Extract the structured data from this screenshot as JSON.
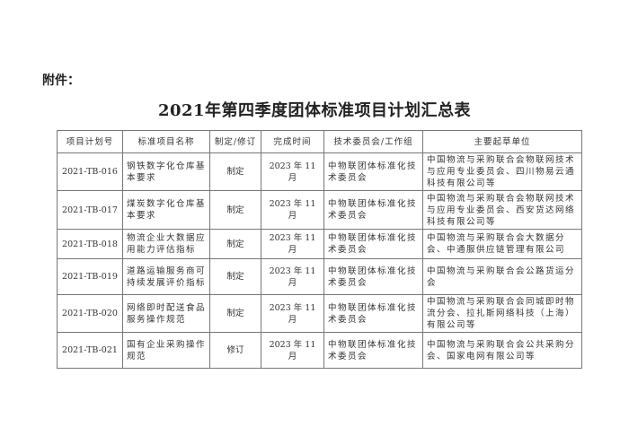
{
  "attachment_label": "附件：",
  "title": "2021年第四季度团体标准项目计划汇总表",
  "table": {
    "headers": [
      "项目计划号",
      "标准项目名称",
      "制定/修订",
      "完成时间",
      "技术委员会/工作组",
      "主要起草单位"
    ],
    "rows": [
      [
        "2021-TB-016",
        "钢铁数字化仓库基本要求",
        "制定",
        "2023 年 11 月",
        "中物联团体标准化技术委员会",
        "中国物流与采购联合会物联网技术与应用专业委员会、四川物易云通科技有限公司等"
      ],
      [
        "2021-TB-017",
        "煤炭数字化仓库基本要求",
        "制定",
        "2023 年 11 月",
        "中物联团体标准化技术委员会",
        "中国物流与采购联合会物联网技术与应用专业委员会、西安货达网络科技有限公司等"
      ],
      [
        "2021-TB-018",
        "物流企业大数据应用能力评估指标",
        "制定",
        "2023 年 11 月",
        "中物联团体标准化技术委员会",
        "中国物流与采购联合会大数据分会、中通服供应链管理有限公司"
      ],
      [
        "2021-TB-019",
        "道路运输服务商可持续发展评价指标",
        "制定",
        "2023 年 11 月",
        "中物联团体标准化技术委员会",
        "中国物流与采购联合会公路货运分会"
      ],
      [
        "2021-TB-020",
        "网络即时配送食品服务操作规范",
        "制定",
        "2023 年 11 月",
        "中物联团体标准化技术委员会",
        "中国物流与采购联合会同城即时物流分会、拉扎斯网络科技（上海）有限公司等"
      ],
      [
        "2021-TB-021",
        "国有企业采购操作规范",
        "修订",
        "2023 年 11 月",
        "中物联团体标准化技术委员会",
        "中国物流与采购联合会公共采购分会、国家电网有限公司等"
      ]
    ]
  }
}
